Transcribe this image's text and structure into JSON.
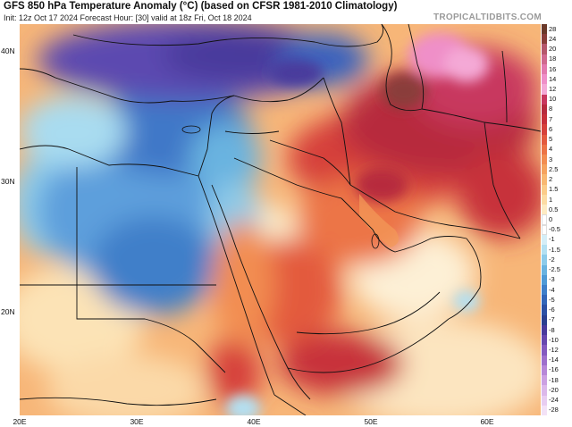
{
  "header": {
    "title": "GFS 850 hPa Temperature Anomaly (°C) (based on CFSR 1981-2010 Climatology)",
    "subtitle": "Init: 12z Oct 17 2024   Forecast Hour: [30]   valid at 18z Fri, Oct 18 2024",
    "site": "TROPICALTIDBITS.COM"
  },
  "map": {
    "region": "Middle East / Northeast Africa",
    "lat_labels": [
      {
        "text": "40N",
        "top": 52
      },
      {
        "text": "30N",
        "top": 198
      },
      {
        "text": "20N",
        "top": 344
      }
    ],
    "lon_labels": [
      {
        "text": "20E",
        "left": 22
      },
      {
        "text": "30E",
        "left": 153
      },
      {
        "text": "40E",
        "left": 284
      },
      {
        "text": "50E",
        "left": 415
      },
      {
        "text": "60E",
        "left": 545
      }
    ],
    "colors": {
      "deep_purple": "#5b3fa8",
      "blue": "#3f6fc8",
      "light_blue": "#8ec7ea",
      "near_zero": "#fbf3d6",
      "orange": "#f39a58",
      "red": "#d9403a",
      "dark_red": "#b0283a",
      "pink": "#ef8fc8",
      "border": "#111111"
    }
  },
  "colorbar": {
    "levels": [
      {
        "label": "28",
        "color": "#6b3a2a"
      },
      {
        "label": "24",
        "color": "#8a3e3a"
      },
      {
        "label": "20",
        "color": "#b5576b"
      },
      {
        "label": "18",
        "color": "#d0698e"
      },
      {
        "label": "16",
        "color": "#e37aae"
      },
      {
        "label": "14",
        "color": "#ef8fc8"
      },
      {
        "label": "12",
        "color": "#f4a9d6"
      },
      {
        "label": "10",
        "color": "#c8375e"
      },
      {
        "label": "8",
        "color": "#b72b3e"
      },
      {
        "label": "7",
        "color": "#c7303a"
      },
      {
        "label": "6",
        "color": "#d6413a"
      },
      {
        "label": "5",
        "color": "#e35a3e"
      },
      {
        "label": "4",
        "color": "#ec7446"
      },
      {
        "label": "3",
        "color": "#f28d51"
      },
      {
        "label": "2.5",
        "color": "#f5a35f"
      },
      {
        "label": "2",
        "color": "#f8b872"
      },
      {
        "label": "1.5",
        "color": "#fbcc8a"
      },
      {
        "label": "1",
        "color": "#fcdca4"
      },
      {
        "label": "0.5",
        "color": "#fdebc3"
      },
      {
        "label": "0",
        "color": "#ffffff"
      },
      {
        "label": "-0.5",
        "color": "#ffffff"
      },
      {
        "label": "-1",
        "color": "#d5eef7"
      },
      {
        "label": "-1.5",
        "color": "#b3e0f2"
      },
      {
        "label": "-2",
        "color": "#8ccbea"
      },
      {
        "label": "-2.5",
        "color": "#69b3e0"
      },
      {
        "label": "-3",
        "color": "#4f9ad6"
      },
      {
        "label": "-4",
        "color": "#3f7fc9"
      },
      {
        "label": "-5",
        "color": "#3466b8"
      },
      {
        "label": "-6",
        "color": "#2d50a3"
      },
      {
        "label": "-7",
        "color": "#2b3f8f"
      },
      {
        "label": "-8",
        "color": "#4a3a9c"
      },
      {
        "label": "-10",
        "color": "#6747ae"
      },
      {
        "label": "-12",
        "color": "#8459bf"
      },
      {
        "label": "-14",
        "color": "#9e6fcc"
      },
      {
        "label": "-16",
        "color": "#b787d8"
      },
      {
        "label": "-18",
        "color": "#cca0e2"
      },
      {
        "label": "-20",
        "color": "#dcb8ea"
      },
      {
        "label": "-24",
        "color": "#e8cdf1"
      },
      {
        "label": "-28",
        "color": "#f3e2f7"
      }
    ]
  }
}
